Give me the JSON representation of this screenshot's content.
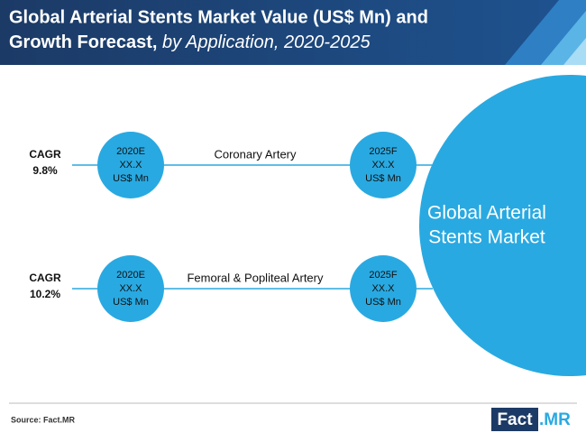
{
  "header": {
    "title_line1": "Global Arterial Stents Market Value (US$ Mn) and",
    "title_line2_bold": "Growth Forecast,",
    "title_line2_italic": "by Application, 2020-2025"
  },
  "rows": [
    {
      "cagr_label": "CAGR",
      "cagr_value": "9.8%",
      "start": [
        "2020E",
        "XX.X",
        "US$ Mn"
      ],
      "segment": "Coronary Artery",
      "end": [
        "2025F",
        "XX.X",
        "US$ Mn"
      ]
    },
    {
      "cagr_label": "CAGR",
      "cagr_value": "10.2%",
      "start": [
        "2020E",
        "XX.X",
        "US$ Mn"
      ],
      "segment": "Femoral & Popliteal Artery",
      "end": [
        "2025F",
        "XX.X",
        "US$ Mn"
      ]
    }
  ],
  "market": {
    "line1": "Global Arterial",
    "line2": "Stents Market"
  },
  "footer": {
    "source": "Source: Fact.MR",
    "logo_left": "Fact",
    "logo_right": ".MR"
  }
}
